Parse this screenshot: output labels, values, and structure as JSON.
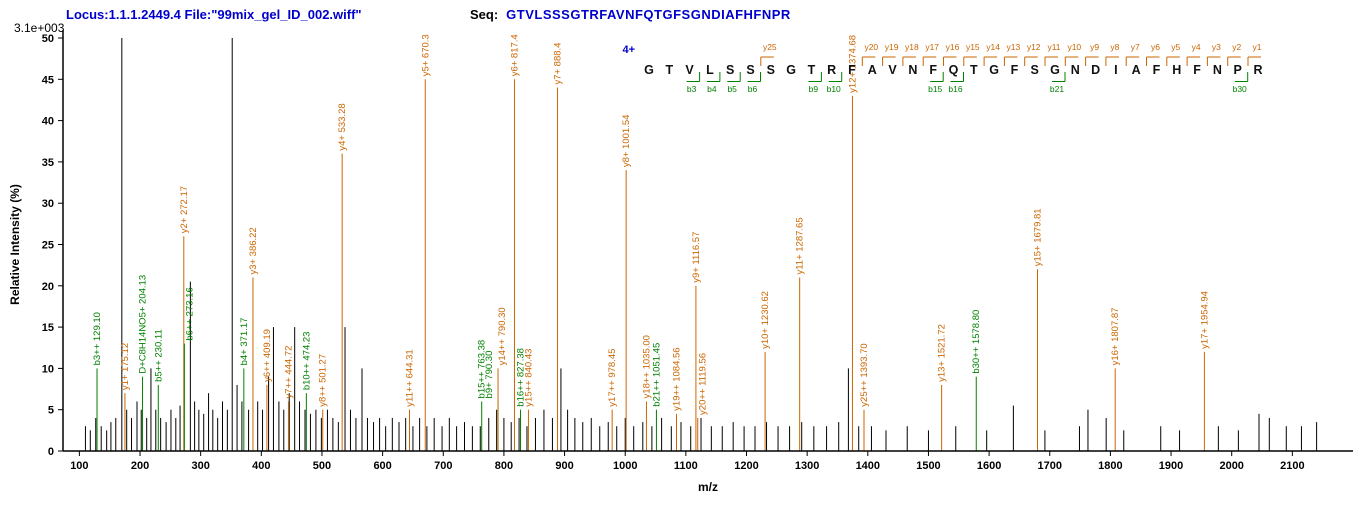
{
  "header": {
    "locus_file": "Locus:1.1.1.2449.4 File:\"99mix_gel_ID_002.wiff\"",
    "seq_label": "Seq:",
    "sequence_text": "GTVLSSSGTRFAVNFQTGFSGNDIAFHFNPR",
    "max_intensity_label": "3.1e+003"
  },
  "colors": {
    "y_series": "#cc6600",
    "b_series": "#008000",
    "header_blue": "#0000cc",
    "axis_black": "#000000"
  },
  "sequence_display": {
    "charge_label": "4+",
    "residues": [
      "G",
      "T",
      "V",
      "L",
      "S",
      "S",
      "S",
      "G",
      "T",
      "R",
      "F",
      "A",
      "V",
      "N",
      "F",
      "Q",
      "T",
      "G",
      "F",
      "S",
      "G",
      "N",
      "D",
      "I",
      "A",
      "F",
      "H",
      "F",
      "N",
      "P",
      "R"
    ],
    "y_ticks": [
      {
        "pos": 7,
        "label": "y25"
      },
      {
        "pos": 12,
        "label": "y20"
      },
      {
        "pos": 13,
        "label": "y19"
      },
      {
        "pos": 14,
        "label": "y18"
      },
      {
        "pos": 15,
        "label": "y17"
      },
      {
        "pos": 16,
        "label": "y16"
      },
      {
        "pos": 17,
        "label": "y15"
      },
      {
        "pos": 18,
        "label": "y14"
      },
      {
        "pos": 19,
        "label": "y13"
      },
      {
        "pos": 20,
        "label": "y12"
      },
      {
        "pos": 21,
        "label": "y11"
      },
      {
        "pos": 22,
        "label": "y10"
      },
      {
        "pos": 23,
        "label": "y9"
      },
      {
        "pos": 24,
        "label": "y8"
      },
      {
        "pos": 25,
        "label": "y7"
      },
      {
        "pos": 26,
        "label": "y6"
      },
      {
        "pos": 27,
        "label": "y5"
      },
      {
        "pos": 28,
        "label": "y4"
      },
      {
        "pos": 29,
        "label": "y3"
      },
      {
        "pos": 30,
        "label": "y2"
      },
      {
        "pos": 31,
        "label": "y1"
      }
    ],
    "b_ticks": [
      {
        "pos": 3,
        "label": "b3"
      },
      {
        "pos": 4,
        "label": "b4"
      },
      {
        "pos": 5,
        "label": "b5"
      },
      {
        "pos": 6,
        "label": "b6"
      },
      {
        "pos": 9,
        "label": "b9"
      },
      {
        "pos": 10,
        "label": "b10"
      },
      {
        "pos": 15,
        "label": "b15"
      },
      {
        "pos": 16,
        "label": "b16"
      },
      {
        "pos": 21,
        "label": "b21"
      },
      {
        "pos": 30,
        "label": "b30"
      }
    ]
  },
  "chart_data": {
    "type": "bar",
    "title": "",
    "xlabel": "m/z",
    "ylabel": "Relative Intensity (%)",
    "xlim": [
      73,
      2200
    ],
    "ylim": [
      0,
      50
    ],
    "grid": false,
    "legend": "none",
    "max_intensity_absolute": "3.1e+003",
    "x_ticks": [
      100,
      200,
      300,
      400,
      500,
      600,
      700,
      800,
      900,
      1000,
      1100,
      1200,
      1300,
      1400,
      1500,
      1600,
      1700,
      1800,
      1900,
      2000,
      2100
    ],
    "y_ticks": [
      0,
      5,
      10,
      15,
      20,
      25,
      30,
      35,
      40,
      45,
      50
    ],
    "labeled_peaks": [
      {
        "mz": 129.1,
        "intensity": 10,
        "series": "b",
        "label": "b3++ 129.10"
      },
      {
        "mz": 175.12,
        "intensity": 7,
        "series": "y",
        "label": "y1+ 175.12"
      },
      {
        "mz": 204.13,
        "intensity": 9,
        "series": "b",
        "label": "D+C8H14NO5+ 204.13"
      },
      {
        "mz": 230.11,
        "intensity": 8,
        "series": "b",
        "label": "b5++ 230.11"
      },
      {
        "mz": 272.17,
        "intensity": 26,
        "series": "y",
        "label": "y2+ 272.17"
      },
      {
        "mz": 273.16,
        "intensity": 13,
        "series": "b",
        "label": "b6++ 273.16",
        "dx": 5
      },
      {
        "mz": 371.17,
        "intensity": 10,
        "series": "b",
        "label": "b4+ 371.17"
      },
      {
        "mz": 386.22,
        "intensity": 21,
        "series": "y",
        "label": "y3+ 386.22"
      },
      {
        "mz": 409.19,
        "intensity": 8,
        "series": "y",
        "label": "y6++ 409.19"
      },
      {
        "mz": 444.72,
        "intensity": 6,
        "series": "y",
        "label": "y7++ 444.72"
      },
      {
        "mz": 474.23,
        "intensity": 7,
        "series": "b",
        "label": "b10++ 474.23"
      },
      {
        "mz": 501.27,
        "intensity": 5,
        "series": "y",
        "label": "y8++ 501.27"
      },
      {
        "mz": 533.28,
        "intensity": 36,
        "series": "y",
        "label": "y4+ 533.28"
      },
      {
        "mz": 644.31,
        "intensity": 5,
        "series": "y",
        "label": "y11++ 644.31"
      },
      {
        "mz": 670.3,
        "intensity": 45,
        "series": "y",
        "label": "y5+ 670.3"
      },
      {
        "mz": 763.38,
        "intensity": 6,
        "series": "b",
        "label": "b15++ 763.38"
      },
      {
        "mz": 790.3,
        "intensity": 6,
        "series": "b",
        "label": "b9+ 790.30",
        "dx": -9
      },
      {
        "mz": 790.3,
        "intensity": 10,
        "series": "y",
        "label": "y14++ 790.30",
        "dx": 4
      },
      {
        "mz": 817.4,
        "intensity": 45,
        "series": "y",
        "label": "y6+ 817.4"
      },
      {
        "mz": 827.38,
        "intensity": 5,
        "series": "b",
        "label": "b16++ 827.38"
      },
      {
        "mz": 840.43,
        "intensity": 5,
        "series": "y",
        "label": "y15++ 840.43"
      },
      {
        "mz": 888.4,
        "intensity": 44,
        "series": "y",
        "label": "y7+ 888.4"
      },
      {
        "mz": 978.45,
        "intensity": 5,
        "series": "y",
        "label": "y17++ 978.45"
      },
      {
        "mz": 1001.54,
        "intensity": 34,
        "series": "y",
        "label": "y8+ 1001.54"
      },
      {
        "mz": 1035.0,
        "intensity": 6,
        "series": "y",
        "label": "y18++ 1035.00"
      },
      {
        "mz": 1051.45,
        "intensity": 5,
        "series": "b",
        "label": "b21++ 1051.45"
      },
      {
        "mz": 1084.56,
        "intensity": 4.5,
        "series": "y",
        "label": "y19++ 1084.56"
      },
      {
        "mz": 1116.57,
        "intensity": 20,
        "series": "y",
        "label": "y9+ 1116.57"
      },
      {
        "mz": 1119.56,
        "intensity": 4,
        "series": "y",
        "label": "y20++ 1119.56",
        "dx": 5
      },
      {
        "mz": 1230.62,
        "intensity": 12,
        "series": "y",
        "label": "y10+ 1230.62"
      },
      {
        "mz": 1287.65,
        "intensity": 21,
        "series": "y",
        "label": "y11+ 1287.65"
      },
      {
        "mz": 1374.68,
        "intensity": 43,
        "series": "y",
        "label": "y12+ 1374.68"
      },
      {
        "mz": 1393.7,
        "intensity": 5,
        "series": "y",
        "label": "y25++ 1393.70"
      },
      {
        "mz": 1521.72,
        "intensity": 8,
        "series": "y",
        "label": "y13+ 1521.72"
      },
      {
        "mz": 1578.8,
        "intensity": 9,
        "series": "b",
        "label": "b30++ 1578.80"
      },
      {
        "mz": 1679.81,
        "intensity": 22,
        "series": "y",
        "label": "y15+ 1679.81"
      },
      {
        "mz": 1807.87,
        "intensity": 10,
        "series": "y",
        "label": "y16+ 1807.87"
      },
      {
        "mz": 1954.94,
        "intensity": 12,
        "series": "y",
        "label": "y17+ 1954.94"
      }
    ],
    "unlabeled_peaks": [
      [
        110,
        3
      ],
      [
        118,
        2.5
      ],
      [
        127,
        4
      ],
      [
        136,
        3
      ],
      [
        145,
        2.5
      ],
      [
        152,
        3.5
      ],
      [
        160,
        4
      ],
      [
        170,
        50
      ],
      [
        178,
        5
      ],
      [
        186,
        4
      ],
      [
        195,
        6
      ],
      [
        202,
        5
      ],
      [
        211,
        4
      ],
      [
        218,
        10
      ],
      [
        226,
        5
      ],
      [
        234,
        4
      ],
      [
        243,
        3.5
      ],
      [
        251,
        5
      ],
      [
        259,
        4
      ],
      [
        266,
        5.5
      ],
      [
        283,
        20.5
      ],
      [
        290,
        6
      ],
      [
        297,
        5
      ],
      [
        305,
        4.5
      ],
      [
        313,
        7
      ],
      [
        320,
        5
      ],
      [
        328,
        4
      ],
      [
        336,
        6
      ],
      [
        344,
        5
      ],
      [
        352,
        50
      ],
      [
        360,
        8
      ],
      [
        368,
        6
      ],
      [
        379,
        5
      ],
      [
        394,
        6
      ],
      [
        402,
        5
      ],
      [
        412,
        9
      ],
      [
        420,
        15
      ],
      [
        429,
        6
      ],
      [
        437,
        5
      ],
      [
        446,
        7
      ],
      [
        455,
        15
      ],
      [
        463,
        6
      ],
      [
        472,
        5
      ],
      [
        481,
        4.5
      ],
      [
        490,
        5
      ],
      [
        499,
        4
      ],
      [
        509,
        5
      ],
      [
        518,
        4
      ],
      [
        527,
        3.5
      ],
      [
        538,
        15
      ],
      [
        547,
        5
      ],
      [
        556,
        4
      ],
      [
        566,
        10
      ],
      [
        575,
        4
      ],
      [
        585,
        3.5
      ],
      [
        595,
        4
      ],
      [
        605,
        3
      ],
      [
        616,
        4
      ],
      [
        627,
        3.5
      ],
      [
        638,
        4
      ],
      [
        650,
        3
      ],
      [
        661,
        4
      ],
      [
        673,
        3
      ],
      [
        685,
        4
      ],
      [
        698,
        3
      ],
      [
        710,
        4
      ],
      [
        722,
        3
      ],
      [
        735,
        3.5
      ],
      [
        748,
        3
      ],
      [
        761,
        3
      ],
      [
        775,
        4
      ],
      [
        788,
        5
      ],
      [
        800,
        4
      ],
      [
        812,
        3.5
      ],
      [
        825,
        4
      ],
      [
        838,
        3
      ],
      [
        852,
        4
      ],
      [
        866,
        5
      ],
      [
        880,
        4
      ],
      [
        894,
        10
      ],
      [
        905,
        5
      ],
      [
        917,
        4
      ],
      [
        930,
        3.5
      ],
      [
        944,
        4
      ],
      [
        958,
        3
      ],
      [
        972,
        3.5
      ],
      [
        986,
        3
      ],
      [
        1000,
        4
      ],
      [
        1014,
        3
      ],
      [
        1029,
        3.5
      ],
      [
        1044,
        3
      ],
      [
        1060,
        4
      ],
      [
        1076,
        3
      ],
      [
        1092,
        3.5
      ],
      [
        1108,
        3
      ],
      [
        1125,
        4
      ],
      [
        1142,
        3
      ],
      [
        1160,
        3
      ],
      [
        1178,
        3.5
      ],
      [
        1196,
        3
      ],
      [
        1214,
        3
      ],
      [
        1233,
        3.5
      ],
      [
        1252,
        3
      ],
      [
        1271,
        3
      ],
      [
        1291,
        3.5
      ],
      [
        1311,
        3
      ],
      [
        1332,
        3
      ],
      [
        1352,
        3.5
      ],
      [
        1368,
        10
      ],
      [
        1385,
        3
      ],
      [
        1406,
        3
      ],
      [
        1430,
        2.5
      ],
      [
        1465,
        3
      ],
      [
        1500,
        2.5
      ],
      [
        1545,
        3
      ],
      [
        1596,
        2.5
      ],
      [
        1640,
        5.5
      ],
      [
        1692,
        2.5
      ],
      [
        1749,
        3
      ],
      [
        1763,
        5
      ],
      [
        1793,
        4
      ],
      [
        1822,
        2.5
      ],
      [
        1883,
        3
      ],
      [
        1914,
        2.5
      ],
      [
        1978,
        3
      ],
      [
        2011,
        2.5
      ],
      [
        2045,
        4.5
      ],
      [
        2062,
        4
      ],
      [
        2090,
        3
      ],
      [
        2115,
        3
      ],
      [
        2140,
        3.5
      ]
    ]
  }
}
